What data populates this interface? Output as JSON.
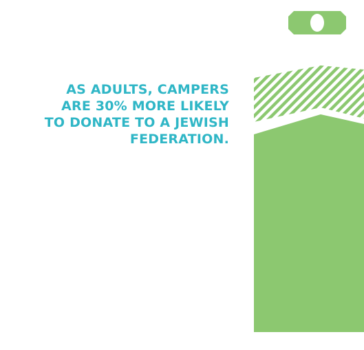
{
  "headline": {
    "lines": [
      "AS ADULTS, CAMPERS",
      "ARE 30% MORE LIKELY",
      "TO DONATE TO A JEWISH",
      "FEDERATION."
    ]
  },
  "icons": {
    "money": "dollar-bill-icon",
    "arrow": "up-arrow-graphic"
  },
  "colors": {
    "headline": "#2fb6c6",
    "green": "#8cc870"
  }
}
